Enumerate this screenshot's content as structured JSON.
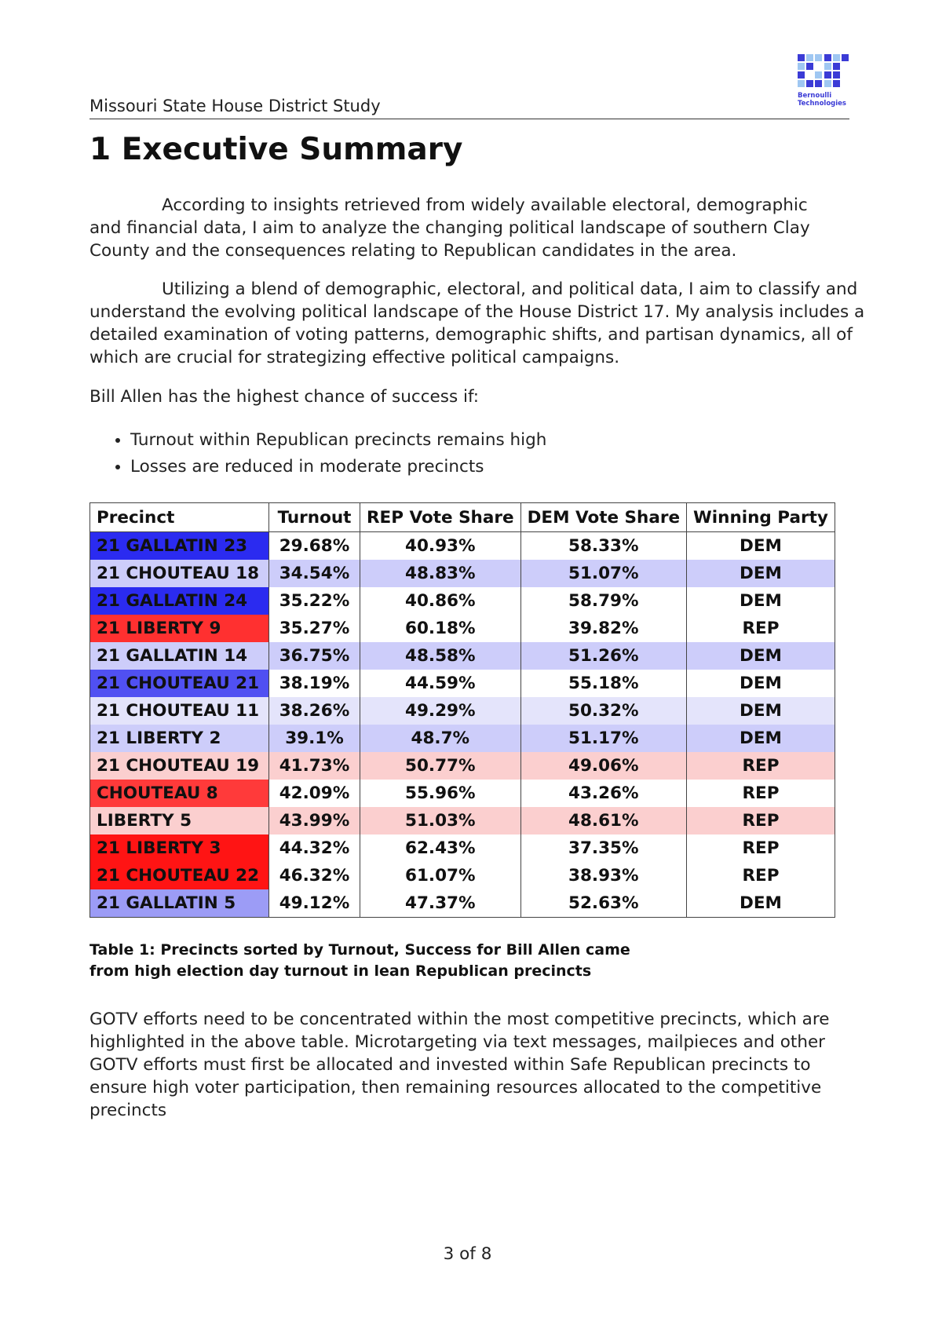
{
  "header": {
    "title": "Missouri State House District Study",
    "logo_text_line1": "Bernoulli",
    "logo_text_line2": "Technologies"
  },
  "section_title": "1 Executive Summary",
  "paragraphs": {
    "p1": "According to insights retrieved from widely available electoral, demographic and financial data, I aim to analyze the changing political landscape of southern Clay County and the consequences relating to Republican candidates in the area.",
    "p2": "Utilizing a blend of demographic, electoral, and political data, I aim to classify and understand the evolving political landscape of the House District 17. My analysis includes a detailed examination of voting patterns, demographic shifts, and partisan dynamics, all of which are crucial for strategizing effective political campaigns.",
    "p3": "Bill Allen has the highest chance of success if:",
    "p4": "GOTV efforts need to be concentrated within the most competitive precincts, which are highlighted in the above table. Microtargeting via text messages, mailpieces and other GOTV efforts must first be allocated and invested within Safe Republican precincts to ensure high voter participation, then remaining resources allocated to the competitive precincts"
  },
  "bullets": [
    "Turnout within Republican precincts remains high",
    "Losses are reduced in moderate precincts"
  ],
  "table": {
    "headers": [
      "Precinct",
      "Turnout",
      "REP Vote Share",
      "DEM Vote Share",
      "Winning Party"
    ],
    "rows": [
      {
        "precinct": "21 GALLATIN 23",
        "turnout": "29.68%",
        "rep": "40.93%",
        "dem": "58.33%",
        "winner": "DEM",
        "precinct_color": "#2b2bf0",
        "row_color": "#ffffff"
      },
      {
        "precinct": "21 CHOUTEAU 18",
        "turnout": "34.54%",
        "rep": "48.83%",
        "dem": "51.07%",
        "winner": "DEM",
        "precinct_color": "#cdcdfa",
        "row_color": "#cdcdfa"
      },
      {
        "precinct": "21 GALLATIN 24",
        "turnout": "35.22%",
        "rep": "40.86%",
        "dem": "58.79%",
        "winner": "DEM",
        "precinct_color": "#2b2bf0",
        "row_color": "#ffffff"
      },
      {
        "precinct": "21 LIBERTY 9",
        "turnout": "35.27%",
        "rep": "60.18%",
        "dem": "39.82%",
        "winner": "REP",
        "precinct_color": "#ff3030",
        "row_color": "#ffffff"
      },
      {
        "precinct": "21 GALLATIN 14",
        "turnout": "36.75%",
        "rep": "48.58%",
        "dem": "51.26%",
        "winner": "DEM",
        "precinct_color": "#cdcdfa",
        "row_color": "#cdcdfa"
      },
      {
        "precinct": "21 CHOUTEAU 21",
        "turnout": "38.19%",
        "rep": "44.59%",
        "dem": "55.18%",
        "winner": "DEM",
        "precinct_color": "#5050f2",
        "row_color": "#ffffff"
      },
      {
        "precinct": "21 CHOUTEAU 11",
        "turnout": "38.26%",
        "rep": "49.29%",
        "dem": "50.32%",
        "winner": "DEM",
        "precinct_color": "#e4e4fb",
        "row_color": "#e4e4fb"
      },
      {
        "precinct": "21 LIBERTY 2",
        "turnout": "39.1%",
        "rep": "48.7%",
        "dem": "51.17%",
        "winner": "DEM",
        "precinct_color": "#cdcdfa",
        "row_color": "#cdcdfa"
      },
      {
        "precinct": "21 CHOUTEAU 19",
        "turnout": "41.73%",
        "rep": "50.77%",
        "dem": "49.06%",
        "winner": "REP",
        "precinct_color": "#fbcfcf",
        "row_color": "#fbcfcf"
      },
      {
        "precinct": "CHOUTEAU 8",
        "turnout": "42.09%",
        "rep": "55.96%",
        "dem": "43.26%",
        "winner": "REP",
        "precinct_color": "#ff3a3a",
        "row_color": "#ffffff"
      },
      {
        "precinct": "LIBERTY 5",
        "turnout": "43.99%",
        "rep": "51.03%",
        "dem": "48.61%",
        "winner": "REP",
        "precinct_color": "#fbcfcf",
        "row_color": "#fbcfcf"
      },
      {
        "precinct": "21 LIBERTY 3",
        "turnout": "44.32%",
        "rep": "62.43%",
        "dem": "37.35%",
        "winner": "REP",
        "precinct_color": "#ff1414",
        "row_color": "#ffffff"
      },
      {
        "precinct": "21 CHOUTEAU 22",
        "turnout": "46.32%",
        "rep": "61.07%",
        "dem": "38.93%",
        "winner": "REP",
        "precinct_color": "#ff1414",
        "row_color": "#ffffff"
      },
      {
        "precinct": "21 GALLATIN 5",
        "turnout": "49.12%",
        "rep": "47.37%",
        "dem": "52.63%",
        "winner": "DEM",
        "precinct_color": "#9c9cf6",
        "row_color": "#ffffff"
      }
    ]
  },
  "caption": "Table 1: Precincts sorted by Turnout, Success for Bill Allen came from high election day turnout in lean Republican precincts",
  "page_number": "3 of 8",
  "colors": {
    "logo_light": "#9fc7f2",
    "logo_dark": "#3b3bd6",
    "text": "#222222"
  }
}
